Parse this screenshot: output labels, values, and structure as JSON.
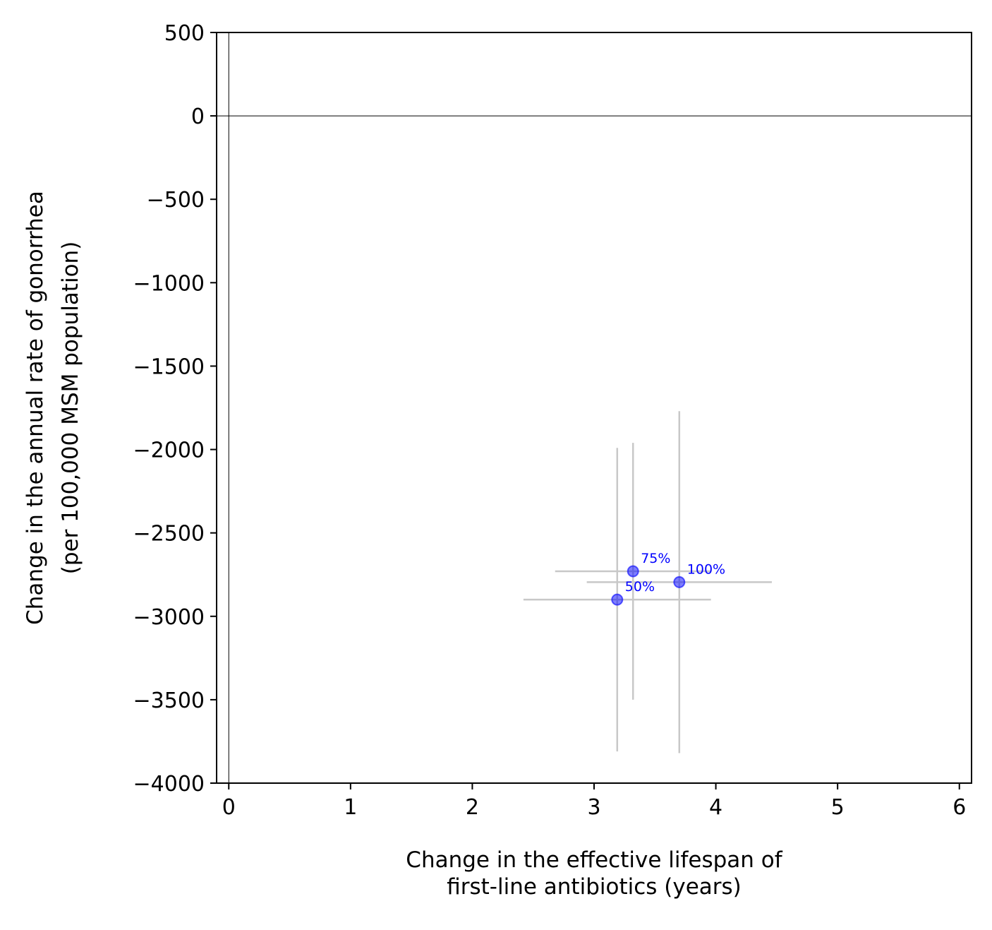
{
  "chart_data": {
    "type": "scatter",
    "title": "",
    "xlabel": [
      "Change in the effective lifespan of",
      "first-line antibiotics (years)"
    ],
    "ylabel": [
      "Change in the annual rate of gonorrhea",
      "(per 100,000 MSM population)"
    ],
    "xlim": [
      -0.1,
      6.1
    ],
    "ylim": [
      -4000,
      500
    ],
    "xticks": [
      0,
      1,
      2,
      3,
      4,
      5,
      6
    ],
    "yticks": [
      500,
      0,
      -500,
      -1000,
      -1500,
      -2000,
      -2500,
      -3000,
      -3500,
      -4000
    ],
    "xtick_labels": [
      "0",
      "1",
      "2",
      "3",
      "4",
      "5",
      "6"
    ],
    "ytick_labels": [
      "500",
      "0",
      "−500",
      "−1000",
      "−1500",
      "−2000",
      "−2500",
      "−3000",
      "−3500",
      "−4000"
    ],
    "reference_lines": {
      "x": 0,
      "y": 0
    },
    "grid": false,
    "point_color": "#0000ff",
    "errorbar_color": "#c8c8c8",
    "points": [
      {
        "label": "50%",
        "x": 3.19,
        "y": -2900,
        "x_low": 2.42,
        "x_high": 3.96,
        "y_low": -3810,
        "y_high": -1990
      },
      {
        "label": "75%",
        "x": 3.32,
        "y": -2730,
        "x_low": 2.68,
        "x_high": 3.96,
        "y_low": -3500,
        "y_high": -1960
      },
      {
        "label": "100%",
        "x": 3.7,
        "y": -2795,
        "x_low": 2.94,
        "x_high": 4.46,
        "y_low": -3820,
        "y_high": -1770
      }
    ]
  }
}
